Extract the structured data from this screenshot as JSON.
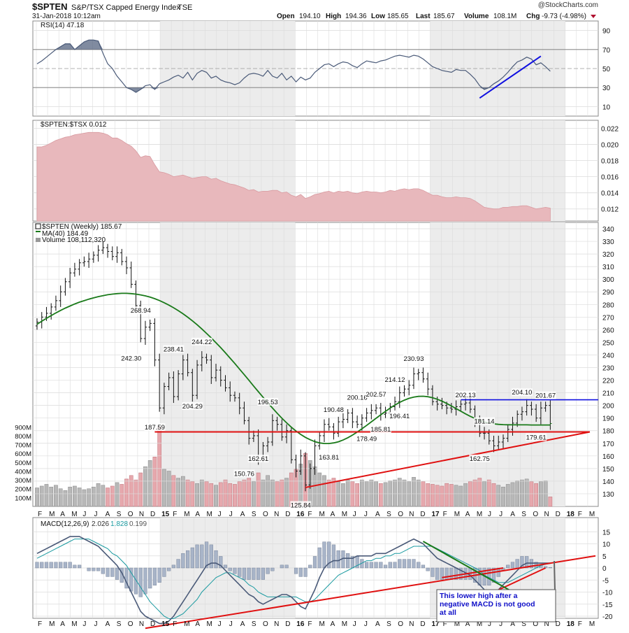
{
  "header": {
    "symbol": "$SPTEN",
    "name": "S&P/TSX Capped Energy Index",
    "exchange": "TSE",
    "watermark": "@StockCharts.com",
    "datetime": "31-Jan-2018 10:12am",
    "open_label": "Open",
    "open": "194.10",
    "high_label": "High",
    "high": "194.36",
    "low_label": "Low",
    "low": "185.65",
    "last_label": "Last",
    "last": "185.67",
    "volume_label": "Volume",
    "volume": "108.1M",
    "chg_label": "Chg",
    "chg": "-9.73 (-4.98%)"
  },
  "colors": {
    "price_bar": "#111111",
    "ma": "#1a7a1a",
    "rsi": "#4a5a78",
    "relative": "#e8b8bc",
    "volume_up": "#b8b8b8",
    "volume_down": "#e6a8ad",
    "support": "#e01010",
    "resistance": "#1010e0",
    "annotation_text": "#1010c8"
  },
  "x_axis": {
    "labels": [
      "F",
      "M",
      "A",
      "M",
      "J",
      "J",
      "A",
      "S",
      "O",
      "N",
      "D",
      "15",
      "F",
      "M",
      "A",
      "M",
      "J",
      "J",
      "A",
      "S",
      "O",
      "N",
      "D",
      "16",
      "F",
      "M",
      "A",
      "M",
      "J",
      "J",
      "A",
      "S",
      "O",
      "N",
      "D",
      "17",
      "F",
      "M",
      "A",
      "M",
      "J",
      "J",
      "A",
      "S",
      "O",
      "N",
      "D",
      "18",
      "F",
      "M"
    ]
  },
  "panels": {
    "rsi": {
      "legend": "RSI(14) 47.18",
      "ticks": [
        10,
        30,
        50,
        70,
        90
      ],
      "levels": [
        30,
        70
      ]
    },
    "relative": {
      "legend": "$SPTEN:$TSX 0.012",
      "ticks": [
        "0.012",
        "0.014",
        "0.016",
        "0.018",
        "0.020",
        "0.022"
      ]
    },
    "price": {
      "legend_main": "$SPTEN (Weekly) 185.67",
      "legend_ma": "MA(40) 184.49",
      "legend_volume": "Volume 108,112,320",
      "ticks": [
        130,
        140,
        150,
        160,
        170,
        180,
        190,
        200,
        210,
        220,
        230,
        240,
        250,
        260,
        270,
        280,
        290,
        300,
        310,
        320,
        330,
        340
      ],
      "volume_ticks": [
        "100M",
        "200M",
        "300M",
        "400M",
        "500M",
        "600M",
        "700M",
        "800M",
        "900M"
      ],
      "labels": [
        {
          "text": "268.94",
          "x": 22,
          "v": 268.94,
          "pos": "above"
        },
        {
          "text": "242.30",
          "x": 20,
          "v": 242.3,
          "pos": "below"
        },
        {
          "text": "238.41",
          "x": 29,
          "v": 238.41,
          "pos": "above"
        },
        {
          "text": "244.22",
          "x": 35,
          "v": 244.22,
          "pos": "above"
        },
        {
          "text": "187.59",
          "x": 25,
          "v": 187.59,
          "pos": "below"
        },
        {
          "text": "204.29",
          "x": 33,
          "v": 204.29,
          "pos": "below"
        },
        {
          "text": "196.53",
          "x": 49,
          "v": 196.53,
          "pos": "above"
        },
        {
          "text": "162.61",
          "x": 47,
          "v": 162.61,
          "pos": "below"
        },
        {
          "text": "150.76",
          "x": 44,
          "v": 150.76,
          "pos": "below"
        },
        {
          "text": "125.84",
          "x": 56,
          "v": 125.84,
          "pos": "below"
        },
        {
          "text": "163.81",
          "x": 62,
          "v": 163.81,
          "pos": "below"
        },
        {
          "text": "190.48",
          "x": 63,
          "v": 190.48,
          "pos": "above"
        },
        {
          "text": "200.16",
          "x": 68,
          "v": 200.16,
          "pos": "above"
        },
        {
          "text": "178.49",
          "x": 70,
          "v": 178.49,
          "pos": "below"
        },
        {
          "text": "202.57",
          "x": 72,
          "v": 202.57,
          "pos": "above"
        },
        {
          "text": "214.12",
          "x": 76,
          "v": 214.12,
          "pos": "above"
        },
        {
          "text": "185.81",
          "x": 73,
          "v": 185.81,
          "pos": "below"
        },
        {
          "text": "196.41",
          "x": 77,
          "v": 196.41,
          "pos": "below"
        },
        {
          "text": "230.93",
          "x": 80,
          "v": 230.93,
          "pos": "above"
        },
        {
          "text": "202.13",
          "x": 91,
          "v": 202.13,
          "pos": "above"
        },
        {
          "text": "181.14",
          "x": 95,
          "v": 181.14,
          "pos": "above"
        },
        {
          "text": "162.75",
          "x": 94,
          "v": 162.75,
          "pos": "below"
        },
        {
          "text": "204.10",
          "x": 103,
          "v": 204.1,
          "pos": "above"
        },
        {
          "text": "201.67",
          "x": 108,
          "v": 201.67,
          "pos": "above"
        },
        {
          "text": "179.61",
          "x": 106,
          "v": 179.61,
          "pos": "below"
        }
      ]
    },
    "macd": {
      "legend_name": "MACD(12,26,9)",
      "legend_macd": "2.026",
      "legend_signal": "1.828",
      "legend_hist": "0.199",
      "ticks": [
        -20,
        -15,
        -10,
        -5,
        0,
        5,
        10,
        15
      ],
      "annotation": "This lower high after a negative MACD is not good at all"
    }
  },
  "chart_data": {
    "type": "line",
    "title": "$SPTEN S&P/TSX Capped Energy Index TSE",
    "x_unit": "week",
    "price_close": [
      266,
      270,
      273,
      278,
      283,
      290,
      298,
      305,
      308,
      313,
      314,
      316,
      319,
      323,
      325,
      322,
      318,
      321,
      314,
      309,
      296,
      279,
      253,
      262,
      265,
      236,
      198,
      215,
      222,
      207,
      225,
      236,
      226,
      208,
      232,
      238,
      236,
      222,
      228,
      220,
      214,
      208,
      206,
      198,
      188,
      174,
      176,
      158,
      168,
      171,
      188,
      185,
      175,
      180,
      157,
      148,
      160,
      137,
      150,
      168,
      176,
      185,
      183,
      178,
      187,
      189,
      194,
      187,
      185,
      190,
      194,
      196,
      198,
      193,
      194,
      199,
      203,
      210,
      213,
      216,
      225,
      226,
      221,
      213,
      203,
      201,
      200,
      198,
      197,
      199,
      201,
      202,
      197,
      188,
      178,
      178,
      172,
      168,
      171,
      174,
      181,
      186,
      193,
      195,
      200,
      197,
      190,
      198,
      200,
      185.67
    ],
    "ma40": [
      264.3,
      266.7,
      269.0,
      271.2,
      273.3,
      275.3,
      277.1,
      278.8,
      280.4,
      281.8,
      283.0,
      284.2,
      285.2,
      286.2,
      287.0,
      287.7,
      288.2,
      288.6,
      288.8,
      288.8,
      288.6,
      288.2,
      287.6,
      286.8,
      285.8,
      284.6,
      283.1,
      281.4,
      279.5,
      277.4,
      275.1,
      272.6,
      269.9,
      267.0,
      263.9,
      260.6,
      257.1,
      253.5,
      249.7,
      245.8,
      241.7,
      237.5,
      233.2,
      228.8,
      224.4,
      219.9,
      215.4,
      210.9,
      206.5,
      202.1,
      197.9,
      193.8,
      189.9,
      186.2,
      182.8,
      179.7,
      177.0,
      174.7,
      172.8,
      171.3,
      170.3,
      169.8,
      169.8,
      170.3,
      171.2,
      172.6,
      174.4,
      176.5,
      178.9,
      181.5,
      184.2,
      187.0,
      189.8,
      192.6,
      195.3,
      197.9,
      200.3,
      202.4,
      204.2,
      205.6,
      206.6,
      207.2,
      207.3,
      206.9,
      206.1,
      204.9,
      203.4,
      201.6,
      199.6,
      197.5,
      195.4,
      193.3,
      191.4,
      189.7,
      188.2,
      187.0,
      186.1,
      185.4,
      185.0,
      184.8,
      184.7,
      184.6,
      184.6,
      184.6,
      184.6,
      184.5,
      184.5,
      184.5,
      184.5,
      184.49
    ],
    "rsi14": [
      55,
      58,
      62,
      66,
      70,
      73,
      76,
      76,
      70,
      74,
      78,
      80,
      80,
      79,
      66,
      55,
      50,
      42,
      36,
      30,
      28,
      25,
      28,
      32,
      33,
      28,
      34,
      36,
      38,
      41,
      43,
      40,
      46,
      38,
      45,
      48,
      46,
      40,
      42,
      38,
      36,
      35,
      33,
      35,
      40,
      44,
      45,
      44,
      42,
      48,
      42,
      40,
      45,
      38,
      42,
      36,
      41,
      38,
      40,
      46,
      50,
      54,
      55,
      52,
      55,
      57,
      56,
      53,
      51,
      55,
      58,
      57,
      56,
      58,
      59,
      61,
      63,
      64,
      63,
      62,
      64,
      63,
      60,
      56,
      52,
      50,
      48,
      47,
      46,
      49,
      48,
      48,
      44,
      39,
      32,
      28,
      30,
      34,
      37,
      41,
      46,
      52,
      57,
      59,
      62,
      60,
      54,
      56,
      52,
      47.18
    ],
    "relative_strength": [
      0.0197,
      0.0197,
      0.0199,
      0.0202,
      0.0205,
      0.0207,
      0.0209,
      0.021,
      0.0212,
      0.0213,
      0.0214,
      0.0215,
      0.0215,
      0.0215,
      0.0214,
      0.0212,
      0.0208,
      0.0208,
      0.0205,
      0.0201,
      0.0198,
      0.0192,
      0.0184,
      0.0186,
      0.0185,
      0.0175,
      0.0166,
      0.0165,
      0.0163,
      0.016,
      0.0161,
      0.0162,
      0.016,
      0.0158,
      0.0159,
      0.016,
      0.016,
      0.0157,
      0.0158,
      0.0155,
      0.0153,
      0.0151,
      0.015,
      0.0148,
      0.0146,
      0.0143,
      0.0144,
      0.0141,
      0.0142,
      0.0142,
      0.0143,
      0.0143,
      0.014,
      0.0141,
      0.0137,
      0.0135,
      0.0138,
      0.0133,
      0.0135,
      0.0138,
      0.0139,
      0.0141,
      0.0142,
      0.014,
      0.0142,
      0.0141,
      0.0142,
      0.014,
      0.0139,
      0.0141,
      0.0142,
      0.0141,
      0.0141,
      0.014,
      0.0141,
      0.0143,
      0.0142,
      0.0144,
      0.0145,
      0.0144,
      0.0145,
      0.0145,
      0.0143,
      0.014,
      0.0137,
      0.0137,
      0.0135,
      0.0134,
      0.0134,
      0.0135,
      0.0134,
      0.0134,
      0.0133,
      0.013,
      0.0126,
      0.0122,
      0.0121,
      0.012,
      0.012,
      0.0122,
      0.0122,
      0.0123,
      0.0123,
      0.0124,
      0.0124,
      0.0122,
      0.012,
      0.0121,
      0.0122,
      0.0121
    ],
    "volume_millions": [
      210,
      230,
      250,
      220,
      240,
      200,
      180,
      220,
      230,
      210,
      190,
      200,
      220,
      260,
      240,
      210,
      230,
      270,
      250,
      310,
      350,
      300,
      380,
      450,
      520,
      560,
      900,
      420,
      400,
      350,
      320,
      340,
      300,
      280,
      260,
      300,
      280,
      260,
      240,
      270,
      300,
      260,
      250,
      280,
      300,
      320,
      280,
      380,
      300,
      350,
      300,
      280,
      300,
      320,
      380,
      420,
      480,
      600,
      520,
      450,
      380,
      350,
      300,
      320,
      280,
      260,
      300,
      280,
      260,
      300,
      280,
      300,
      280,
      260,
      270,
      290,
      300,
      320,
      300,
      280,
      330,
      300,
      280,
      260,
      250,
      240,
      230,
      260,
      250,
      240,
      230,
      260,
      280,
      300,
      320,
      280,
      300,
      260,
      240,
      220,
      250,
      270,
      290,
      300,
      310,
      280,
      260,
      280,
      290,
      108
    ],
    "macd_line": [
      6,
      7,
      8,
      9,
      10,
      11,
      12,
      13,
      13,
      13,
      12,
      11,
      10,
      9,
      7,
      5,
      3,
      1,
      -2,
      -6,
      -10,
      -14,
      -18,
      -20,
      -21,
      -22,
      -23,
      -23,
      -22,
      -20,
      -17,
      -14,
      -11,
      -8,
      -5,
      -2,
      1,
      2,
      2,
      1,
      -1,
      -3,
      -5,
      -7,
      -9,
      -11,
      -12,
      -14,
      -15,
      -14,
      -13,
      -12,
      -11,
      -11,
      -12,
      -14,
      -16,
      -17,
      -13,
      -9,
      -4,
      0,
      2,
      3,
      3,
      4,
      4,
      4,
      5,
      5,
      5,
      5,
      6,
      6,
      6,
      7,
      8,
      9,
      10,
      11,
      12,
      11,
      10,
      8,
      6,
      4,
      3,
      2,
      1,
      0,
      -1,
      -2,
      -3,
      -5,
      -7,
      -9,
      -10,
      -10,
      -9,
      -7,
      -5,
      -3,
      -1,
      1,
      2,
      2,
      2,
      2,
      2,
      2.026
    ],
    "macd_signal": [
      4,
      5,
      6,
      7,
      8,
      9,
      10,
      11,
      12,
      12,
      12,
      12,
      11,
      10,
      9,
      8,
      6,
      5,
      3,
      1,
      -2,
      -5,
      -8,
      -11,
      -14,
      -16,
      -18,
      -20,
      -21,
      -21,
      -20,
      -19,
      -17,
      -15,
      -13,
      -10,
      -8,
      -6,
      -4,
      -3,
      -2,
      -2,
      -3,
      -4,
      -5,
      -7,
      -8,
      -10,
      -11,
      -12,
      -12,
      -12,
      -12,
      -12,
      -12,
      -12,
      -13,
      -14,
      -14,
      -13,
      -11,
      -9,
      -7,
      -5,
      -3,
      -2,
      -1,
      0,
      1,
      2,
      3,
      3,
      4,
      4,
      5,
      5,
      6,
      6,
      7,
      8,
      9,
      9,
      9,
      9,
      9,
      8,
      7,
      6,
      5,
      4,
      3,
      2,
      1,
      0,
      -1,
      -3,
      -4,
      -5,
      -6,
      -6,
      -6,
      -5,
      -4,
      -3,
      -2,
      -1,
      0,
      1,
      1.5,
      1.828
    ],
    "support_line": {
      "from_x": 25,
      "to_x": 128,
      "value": 179
    },
    "resistance_line": {
      "from_x": 90,
      "to_x": 128,
      "value": 204.5
    },
    "rising_trendline": {
      "from": [
        57,
        135
      ],
      "to": [
        128,
        179
      ]
    },
    "rsi_trendline": {
      "from": [
        94,
        19
      ],
      "to": [
        107,
        63
      ]
    },
    "macd_trendline": {
      "from": [
        23,
        -25
      ],
      "to": [
        128,
        5
      ]
    },
    "macd_downtrend": {
      "from": [
        82,
        11
      ],
      "to": [
        102,
        -11
      ]
    },
    "macd_trendline_2": {
      "from": [
        86,
        -4
      ],
      "to": [
        99,
        0
      ]
    },
    "macd_trendline_3": {
      "from": [
        97,
        -10
      ],
      "to": [
        108,
        0
      ]
    }
  }
}
